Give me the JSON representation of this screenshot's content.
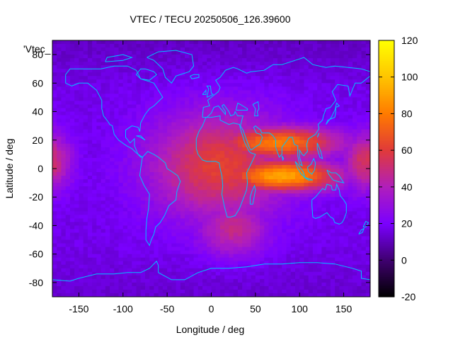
{
  "chart_data": {
    "type": "heatmap",
    "title": "VTEC / TECU 20250506_126.39600",
    "xlabel": "Longitude / deg",
    "ylabel": "Latitude / deg",
    "key_label": "'Vtec_",
    "xlim": [
      -180,
      180
    ],
    "ylim": [
      -90,
      90
    ],
    "x_ticks": [
      -150,
      -100,
      -50,
      0,
      50,
      100,
      150
    ],
    "y_ticks": [
      -80,
      -60,
      -40,
      -20,
      0,
      20,
      40,
      60,
      80
    ],
    "colorbar": {
      "range": [
        -20,
        120
      ],
      "ticks": [
        -20,
        0,
        20,
        40,
        60,
        80,
        100,
        120
      ],
      "palette": [
        "#000000",
        "#3f006f",
        "#7a00ff",
        "#b01ebc",
        "#e03a3a",
        "#ff7a00",
        "#ffc400",
        "#ffff00"
      ]
    },
    "background_value": 17,
    "features": [
      {
        "name": "equatorial-crest",
        "lon": 80,
        "lat": -5,
        "peak": 92
      },
      {
        "name": "northern-crest",
        "lon": 75,
        "lat": 18,
        "peak": 80
      },
      {
        "name": "africa-broad",
        "lon": 10,
        "lat": 2,
        "peak": 62
      },
      {
        "name": "south-atlantic-tail",
        "lon": 25,
        "lat": -42,
        "peak": 48
      },
      {
        "name": "pacific-east",
        "lon": 175,
        "lat": 5,
        "peak": 55
      }
    ]
  },
  "coastline_color": "#00c0ff",
  "frame_color": "#000000"
}
